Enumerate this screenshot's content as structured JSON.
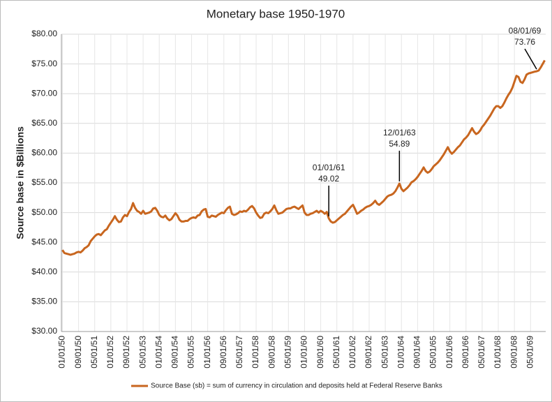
{
  "chart_data": {
    "type": "line",
    "title": "Monetary base 1950-1970",
    "y_label": "Source base in $Billions",
    "categories": [
      "01/01/50",
      null,
      null,
      null,
      null,
      null,
      null,
      null,
      "09/01/50",
      null,
      null,
      null,
      null,
      null,
      null,
      null,
      "05/01/51",
      null,
      null,
      null,
      null,
      null,
      null,
      null,
      "01/01/52",
      null,
      null,
      null,
      null,
      null,
      null,
      null,
      "09/01/52",
      null,
      null,
      null,
      null,
      null,
      null,
      null,
      "05/01/53",
      null,
      null,
      null,
      null,
      null,
      null,
      null,
      "01/01/54",
      null,
      null,
      null,
      null,
      null,
      null,
      null,
      "09/01/54",
      null,
      null,
      null,
      null,
      null,
      null,
      null,
      "05/01/55",
      null,
      null,
      null,
      null,
      null,
      null,
      null,
      "01/01/56",
      null,
      null,
      null,
      null,
      null,
      null,
      null,
      "09/01/56",
      null,
      null,
      null,
      null,
      null,
      null,
      null,
      "05/01/57",
      null,
      null,
      null,
      null,
      null,
      null,
      null,
      "01/01/58",
      null,
      null,
      null,
      null,
      null,
      null,
      null,
      "09/01/58",
      null,
      null,
      null,
      null,
      null,
      null,
      null,
      "05/01/59",
      null,
      null,
      null,
      null,
      null,
      null,
      null,
      "01/01/60",
      null,
      null,
      null,
      null,
      null,
      null,
      null,
      "09/01/60",
      null,
      null,
      null,
      null,
      null,
      null,
      null,
      "05/01/61",
      null,
      null,
      null,
      null,
      null,
      null,
      null,
      "01/01/62",
      null,
      null,
      null,
      null,
      null,
      null,
      null,
      "09/01/62",
      null,
      null,
      null,
      null,
      null,
      null,
      null,
      "05/01/63",
      null,
      null,
      null,
      null,
      null,
      null,
      null,
      "01/01/64",
      null,
      null,
      null,
      null,
      null,
      null,
      null,
      "09/01/64",
      null,
      null,
      null,
      null,
      null,
      null,
      null,
      "05/01/65",
      null,
      null,
      null,
      null,
      null,
      null,
      null,
      "01/01/66",
      null,
      null,
      null,
      null,
      null,
      null,
      null,
      "09/01/66",
      null,
      null,
      null,
      null,
      null,
      null,
      null,
      "05/01/67",
      null,
      null,
      null,
      null,
      null,
      null,
      null,
      "01/01/68",
      null,
      null,
      null,
      null,
      null,
      null,
      null,
      "09/01/68",
      null,
      null,
      null,
      null,
      null,
      null,
      null,
      "05/01/69",
      null,
      null,
      null,
      null,
      null,
      null,
      null
    ],
    "series": [
      {
        "name": "Source Base (sb) = sum of currency in circulation and deposits held at Federal Reserve Banks",
        "color": "#c8661f",
        "values": [
          43.7,
          43.2,
          43.1,
          43.0,
          42.9,
          43.0,
          43.1,
          43.3,
          43.4,
          43.3,
          43.6,
          44.0,
          44.2,
          44.5,
          45.2,
          45.6,
          46.0,
          46.3,
          46.4,
          46.2,
          46.6,
          47.0,
          47.2,
          47.8,
          48.3,
          48.8,
          49.4,
          48.8,
          48.4,
          48.5,
          49.2,
          49.6,
          49.4,
          50.1,
          50.6,
          51.6,
          50.8,
          50.3,
          50.1,
          49.8,
          50.3,
          49.8,
          49.9,
          50.0,
          50.2,
          50.7,
          50.8,
          50.3,
          49.6,
          49.3,
          49.2,
          49.5,
          49.0,
          48.7,
          48.9,
          49.4,
          49.9,
          49.5,
          48.8,
          48.5,
          48.5,
          48.6,
          48.6,
          48.9,
          49.1,
          49.2,
          49.1,
          49.5,
          49.6,
          50.2,
          50.5,
          50.6,
          49.3,
          49.2,
          49.5,
          49.4,
          49.3,
          49.6,
          49.8,
          50.0,
          49.9,
          50.4,
          50.8,
          51.0,
          49.8,
          49.6,
          49.7,
          49.9,
          50.2,
          50.1,
          50.3,
          50.2,
          50.5,
          50.9,
          51.1,
          50.7,
          50.0,
          49.5,
          49.1,
          49.2,
          49.8,
          50.0,
          49.9,
          50.2,
          50.6,
          51.2,
          50.4,
          49.8,
          49.9,
          50.0,
          50.3,
          50.6,
          50.7,
          50.7,
          50.9,
          51.0,
          50.8,
          50.6,
          50.9,
          51.2,
          50.0,
          49.6,
          49.6,
          49.8,
          49.9,
          50.1,
          50.3,
          50.0,
          50.3,
          50.1,
          49.8,
          50.1,
          49.02,
          48.5,
          48.3,
          48.4,
          48.7,
          49.0,
          49.3,
          49.6,
          49.8,
          50.2,
          50.6,
          51.0,
          51.3,
          50.6,
          49.8,
          50.0,
          50.3,
          50.5,
          50.8,
          51.0,
          51.1,
          51.3,
          51.6,
          52.0,
          51.5,
          51.3,
          51.6,
          51.9,
          52.3,
          52.7,
          52.9,
          53.0,
          53.2,
          53.6,
          54.2,
          54.89,
          54.0,
          53.6,
          53.9,
          54.2,
          54.6,
          55.1,
          55.3,
          55.6,
          56.0,
          56.5,
          57.0,
          57.6,
          57.0,
          56.7,
          56.9,
          57.3,
          57.8,
          58.1,
          58.4,
          58.8,
          59.3,
          59.8,
          60.4,
          61.0,
          60.3,
          59.9,
          60.2,
          60.6,
          61.0,
          61.3,
          61.8,
          62.3,
          62.6,
          63.0,
          63.6,
          64.2,
          63.6,
          63.2,
          63.4,
          63.8,
          64.4,
          64.8,
          65.3,
          65.8,
          66.3,
          66.9,
          67.5,
          67.9,
          67.9,
          67.6,
          67.9,
          68.5,
          69.2,
          69.8,
          70.3,
          71.0,
          72.0,
          73.0,
          72.8,
          72.0,
          71.8,
          72.4,
          73.2,
          73.4,
          73.5,
          73.6,
          73.7,
          73.76,
          73.9,
          74.4,
          75.0,
          75.6
        ]
      }
    ],
    "ylim": [
      30,
      80
    ],
    "yticks": [
      {
        "value": 30,
        "label": "$30.00"
      },
      {
        "value": 35,
        "label": "$35.00"
      },
      {
        "value": 40,
        "label": "$40.00"
      },
      {
        "value": 45,
        "label": "$45.00"
      },
      {
        "value": 50,
        "label": "$50.00"
      },
      {
        "value": 55,
        "label": "$55.00"
      },
      {
        "value": 60,
        "label": "$60.00"
      },
      {
        "value": 65,
        "label": "$65.00"
      },
      {
        "value": 70,
        "label": "$70.00"
      },
      {
        "value": 75,
        "label": "$75.00"
      },
      {
        "value": 80,
        "label": "$80.00"
      }
    ],
    "grid": true,
    "legend": "bottom",
    "annotations": [
      {
        "date": "01/01/61",
        "value": 49.02
      },
      {
        "date": "12/01/63",
        "value": 54.89
      },
      {
        "date": "08/01/69",
        "value": 73.76
      }
    ]
  }
}
